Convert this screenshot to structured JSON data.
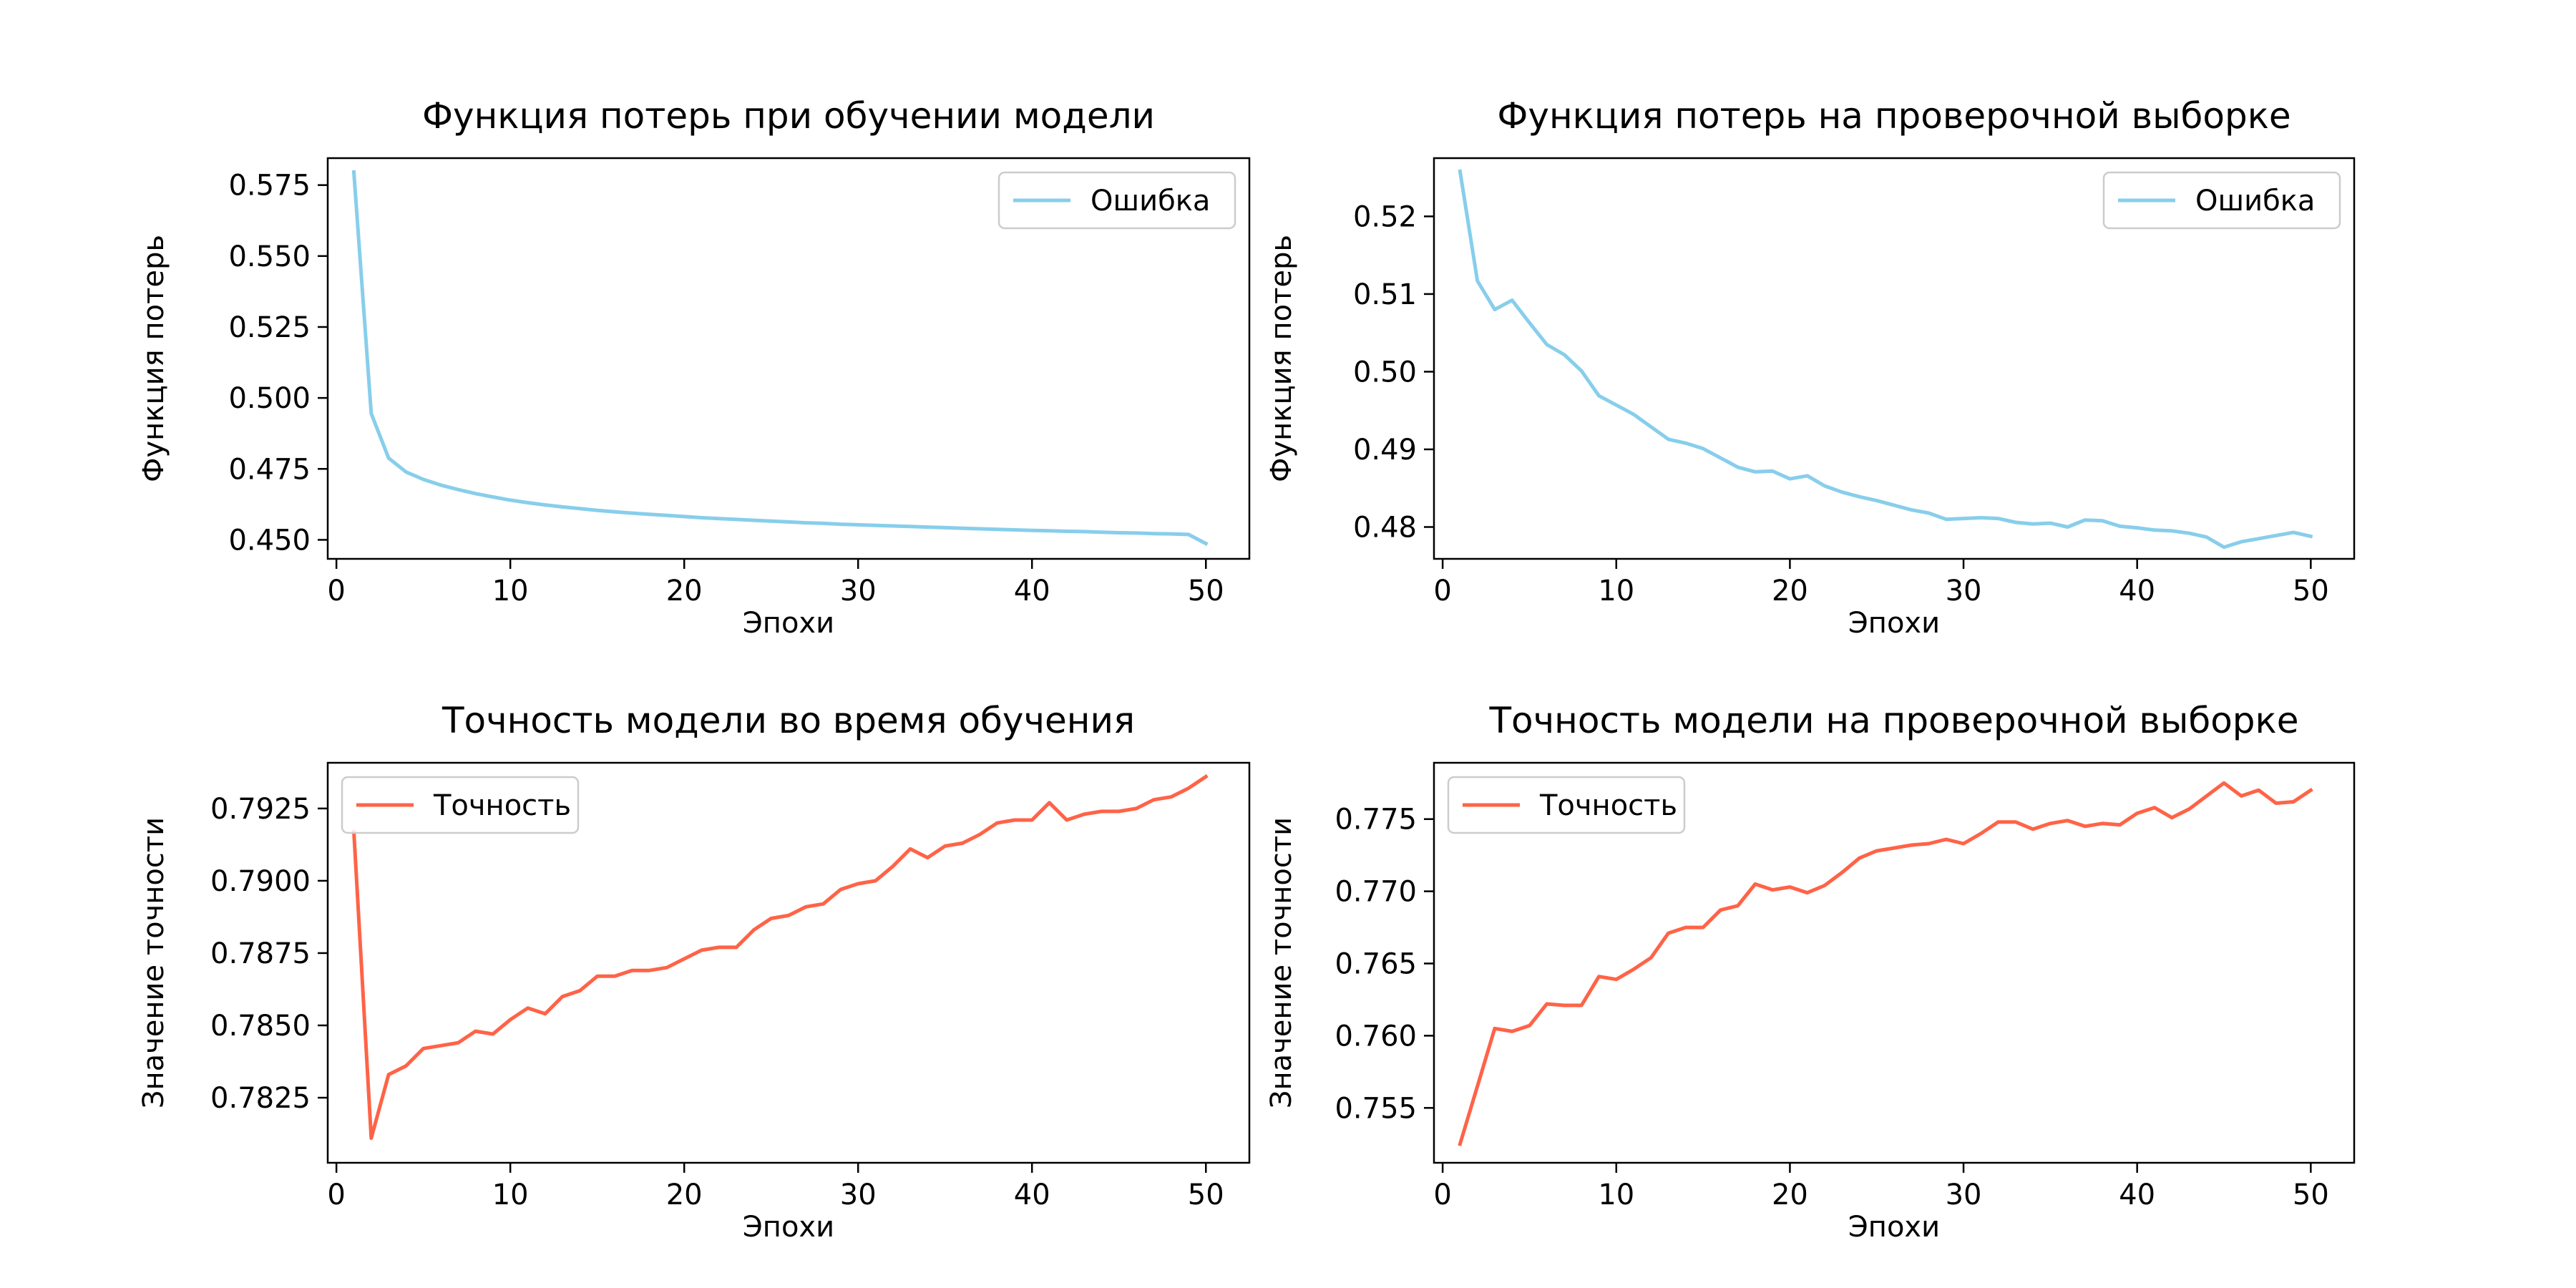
{
  "colors": {
    "loss": "#87ceeb",
    "accuracy": "#ff6347",
    "axes": "#000000",
    "background": "#ffffff",
    "legend_border": "#cccccc"
  },
  "chart_data": [
    {
      "type": "line",
      "title": "Функция потерь при обучении модели",
      "xlabel": "Эпохи",
      "ylabel": "Функция потерь",
      "xlim": [
        -0.5,
        52.5
      ],
      "ylim": [
        0.4433,
        0.5845
      ],
      "xticks": [
        0,
        10,
        20,
        30,
        40,
        50
      ],
      "yticks": [
        0.45,
        0.475,
        0.5,
        0.525,
        0.55,
        0.575
      ],
      "ytick_labels": [
        "0.450",
        "0.475",
        "0.500",
        "0.525",
        "0.550",
        "0.575"
      ],
      "legend": "top-right",
      "grid": false,
      "series": [
        {
          "name": "Ошибка",
          "color_key": "loss",
          "x": [
            1,
            2,
            3,
            4,
            5,
            6,
            7,
            8,
            9,
            10,
            11,
            12,
            13,
            14,
            15,
            16,
            17,
            18,
            19,
            20,
            21,
            22,
            23,
            24,
            25,
            26,
            27,
            28,
            29,
            30,
            31,
            32,
            33,
            34,
            35,
            36,
            37,
            38,
            39,
            40,
            41,
            42,
            43,
            44,
            45,
            46,
            47,
            48,
            49,
            50
          ],
          "y": [
            0.5796,
            0.4945,
            0.4788,
            0.4739,
            0.4713,
            0.4693,
            0.4677,
            0.4663,
            0.4651,
            0.464,
            0.4631,
            0.4623,
            0.4616,
            0.461,
            0.4604,
            0.4599,
            0.4594,
            0.459,
            0.4586,
            0.4582,
            0.4578,
            0.4575,
            0.4572,
            0.4569,
            0.4566,
            0.4563,
            0.456,
            0.4558,
            0.4555,
            0.4553,
            0.4551,
            0.4549,
            0.4547,
            0.4545,
            0.4543,
            0.4541,
            0.4539,
            0.4537,
            0.4535,
            0.4533,
            0.4532,
            0.453,
            0.4529,
            0.4527,
            0.4525,
            0.4524,
            0.4522,
            0.4521,
            0.4519,
            0.4487
          ]
        }
      ]
    },
    {
      "type": "line",
      "title": "Функция потерь на проверочной выборке",
      "xlabel": "Эпохи",
      "ylabel": "Функция потерь",
      "xlim": [
        -0.5,
        52.5
      ],
      "ylim": [
        0.4759,
        0.5275
      ],
      "xticks": [
        0,
        10,
        20,
        30,
        40,
        50
      ],
      "yticks": [
        0.48,
        0.49,
        0.5,
        0.51,
        0.52
      ],
      "ytick_labels": [
        "0.48",
        "0.49",
        "0.50",
        "0.51",
        "0.52"
      ],
      "legend": "top-right",
      "grid": false,
      "series": [
        {
          "name": "Ошибка",
          "color_key": "loss",
          "x": [
            1,
            2,
            3,
            4,
            5,
            6,
            7,
            8,
            9,
            10,
            11,
            12,
            13,
            14,
            15,
            16,
            17,
            18,
            19,
            20,
            21,
            22,
            23,
            24,
            25,
            26,
            27,
            28,
            29,
            30,
            31,
            32,
            33,
            34,
            35,
            36,
            37,
            38,
            39,
            40,
            41,
            42,
            43,
            44,
            45,
            46,
            47,
            48,
            49,
            50
          ],
          "y": [
            0.5258,
            0.5117,
            0.508,
            0.5092,
            0.5063,
            0.5035,
            0.5022,
            0.5001,
            0.4969,
            0.4957,
            0.4945,
            0.4929,
            0.4913,
            0.4908,
            0.4901,
            0.4889,
            0.4877,
            0.4871,
            0.4872,
            0.4862,
            0.4866,
            0.4853,
            0.4845,
            0.4839,
            0.4834,
            0.4828,
            0.4822,
            0.4818,
            0.481,
            0.4811,
            0.4812,
            0.4811,
            0.4806,
            0.4804,
            0.4805,
            0.48,
            0.4809,
            0.4808,
            0.4801,
            0.4799,
            0.4796,
            0.4795,
            0.4792,
            0.4787,
            0.4774,
            0.4781,
            0.4785,
            0.4789,
            0.4793,
            0.4788
          ]
        }
      ]
    },
    {
      "type": "line",
      "title": "Точность модели во время обучения",
      "xlabel": "Эпохи",
      "ylabel": "Значение точности",
      "xlim": [
        -0.5,
        52.5
      ],
      "ylim": [
        0.78025,
        0.79408
      ],
      "xticks": [
        0,
        10,
        20,
        30,
        40,
        50
      ],
      "yticks": [
        0.7825,
        0.785,
        0.7875,
        0.79,
        0.7925
      ],
      "ytick_labels": [
        "0.7825",
        "0.7850",
        "0.7875",
        "0.7900",
        "0.7925"
      ],
      "legend": "top-left",
      "grid": false,
      "series": [
        {
          "name": "Точность",
          "color_key": "accuracy",
          "x": [
            1,
            2,
            3,
            4,
            5,
            6,
            7,
            8,
            9,
            10,
            11,
            12,
            13,
            14,
            15,
            16,
            17,
            18,
            19,
            20,
            21,
            22,
            23,
            24,
            25,
            26,
            27,
            28,
            29,
            30,
            31,
            32,
            33,
            34,
            35,
            36,
            37,
            38,
            39,
            40,
            41,
            42,
            43,
            44,
            45,
            46,
            47,
            48,
            49,
            50
          ],
          "y": [
            0.7917,
            0.7811,
            0.7833,
            0.7836,
            0.7842,
            0.7843,
            0.7844,
            0.7848,
            0.7847,
            0.7852,
            0.7856,
            0.7854,
            0.786,
            0.7862,
            0.7867,
            0.7867,
            0.7869,
            0.7869,
            0.787,
            0.7873,
            0.7876,
            0.7877,
            0.7877,
            0.7883,
            0.7887,
            0.7888,
            0.7891,
            0.7892,
            0.7897,
            0.7899,
            0.79,
            0.7905,
            0.7911,
            0.7908,
            0.7912,
            0.7913,
            0.7916,
            0.792,
            0.7921,
            0.7921,
            0.7927,
            0.7921,
            0.7923,
            0.7924,
            0.7924,
            0.7925,
            0.7928,
            0.7929,
            0.7932,
            0.7936
          ]
        }
      ]
    },
    {
      "type": "line",
      "title": "Точность модели на проверочной выборке",
      "xlabel": "Эпохи",
      "ylabel": "Значение точности",
      "xlim": [
        -0.5,
        52.5
      ],
      "ylim": [
        0.7512,
        0.7789
      ],
      "xticks": [
        0,
        10,
        20,
        30,
        40,
        50
      ],
      "yticks": [
        0.755,
        0.76,
        0.765,
        0.77,
        0.775
      ],
      "ytick_labels": [
        "0.755",
        "0.760",
        "0.765",
        "0.770",
        "0.775"
      ],
      "legend": "top-left",
      "grid": false,
      "series": [
        {
          "name": "Точность",
          "color_key": "accuracy",
          "x": [
            1,
            2,
            3,
            4,
            5,
            6,
            7,
            8,
            9,
            10,
            11,
            12,
            13,
            14,
            15,
            16,
            17,
            18,
            19,
            20,
            21,
            22,
            23,
            24,
            25,
            26,
            27,
            28,
            29,
            30,
            31,
            32,
            33,
            34,
            35,
            36,
            37,
            38,
            39,
            40,
            41,
            42,
            43,
            44,
            45,
            46,
            47,
            48,
            49,
            50
          ],
          "y": [
            0.7525,
            0.7565,
            0.7605,
            0.7603,
            0.7607,
            0.7622,
            0.7621,
            0.7621,
            0.7641,
            0.7639,
            0.7646,
            0.7654,
            0.7671,
            0.7675,
            0.7675,
            0.7687,
            0.769,
            0.7705,
            0.7701,
            0.7703,
            0.7699,
            0.7704,
            0.7713,
            0.7723,
            0.7728,
            0.773,
            0.7732,
            0.7733,
            0.7736,
            0.7733,
            0.774,
            0.7748,
            0.7748,
            0.7743,
            0.7747,
            0.7749,
            0.7745,
            0.7747,
            0.7746,
            0.7754,
            0.7758,
            0.7751,
            0.7757,
            0.7766,
            0.7775,
            0.7766,
            0.777,
            0.7761,
            0.7762,
            0.777
          ]
        }
      ]
    }
  ]
}
